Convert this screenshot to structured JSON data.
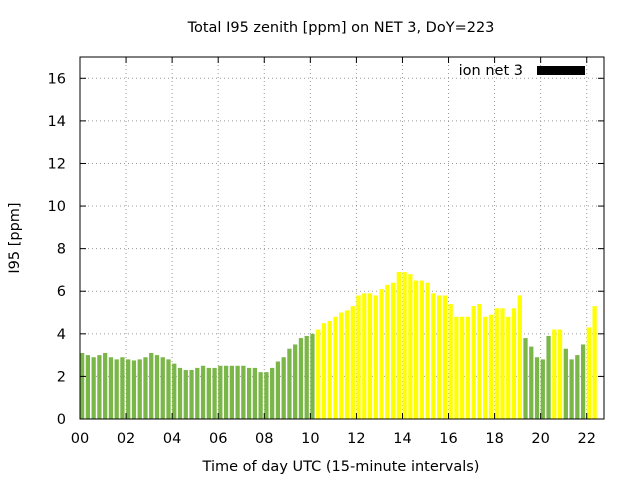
{
  "chart_data": {
    "type": "bar",
    "title": "Total I95 zenith [ppm] on NET 3, DoY=223",
    "xlabel": "Time of day UTC (15-minute intervals)",
    "ylabel": "I95 [ppm]",
    "ylim": [
      0,
      17
    ],
    "xlim": [
      0,
      22.75
    ],
    "yticks": [
      0,
      2,
      4,
      6,
      8,
      10,
      12,
      14,
      16
    ],
    "xticks": [
      {
        "value": 0,
        "label": "00"
      },
      {
        "value": 2,
        "label": "02"
      },
      {
        "value": 4,
        "label": "04"
      },
      {
        "value": 6,
        "label": "06"
      },
      {
        "value": 8,
        "label": "08"
      },
      {
        "value": 10,
        "label": "10"
      },
      {
        "value": 12,
        "label": "12"
      },
      {
        "value": 14,
        "label": "14"
      },
      {
        "value": 16,
        "label": "16"
      },
      {
        "value": 18,
        "label": "18"
      },
      {
        "value": 20,
        "label": "20"
      },
      {
        "value": 22,
        "label": "22"
      }
    ],
    "grid": true,
    "legend_position": "top-right",
    "colors": {
      "green": "#7ab648",
      "yellow": "#ffff00",
      "legend": "#000000"
    },
    "series": [
      {
        "name": "ion net 3",
        "x_step_hours": 0.25,
        "values": [
          3.1,
          3.0,
          2.9,
          3.0,
          3.1,
          2.9,
          2.8,
          2.9,
          2.8,
          2.75,
          2.8,
          2.9,
          3.1,
          3.0,
          2.9,
          2.8,
          2.6,
          2.4,
          2.3,
          2.3,
          2.4,
          2.5,
          2.4,
          2.4,
          2.5,
          2.5,
          2.5,
          2.5,
          2.5,
          2.4,
          2.4,
          2.2,
          2.2,
          2.4,
          2.7,
          2.9,
          3.3,
          3.5,
          3.8,
          3.9,
          4.0,
          4.2,
          4.5,
          4.6,
          4.8,
          5.0,
          5.1,
          5.3,
          5.8,
          5.9,
          5.9,
          5.8,
          6.1,
          6.3,
          6.4,
          6.9,
          6.9,
          6.8,
          6.5,
          6.5,
          6.4,
          5.9,
          5.8,
          5.8,
          5.4,
          4.8,
          4.8,
          4.8,
          5.3,
          5.4,
          4.8,
          4.9,
          5.2,
          5.2,
          4.8,
          5.2,
          5.8,
          3.8,
          3.4,
          2.9,
          2.8,
          3.9,
          4.2,
          4.2,
          3.3,
          2.8,
          3.0,
          3.5,
          4.3,
          5.3
        ],
        "colors": [
          "green",
          "green",
          "green",
          "green",
          "green",
          "green",
          "green",
          "green",
          "green",
          "green",
          "green",
          "green",
          "green",
          "green",
          "green",
          "green",
          "green",
          "green",
          "green",
          "green",
          "green",
          "green",
          "green",
          "green",
          "green",
          "green",
          "green",
          "green",
          "green",
          "green",
          "green",
          "green",
          "green",
          "green",
          "green",
          "green",
          "green",
          "green",
          "green",
          "green",
          "green",
          "yellow",
          "yellow",
          "yellow",
          "yellow",
          "yellow",
          "yellow",
          "yellow",
          "yellow",
          "yellow",
          "yellow",
          "yellow",
          "yellow",
          "yellow",
          "yellow",
          "yellow",
          "yellow",
          "yellow",
          "yellow",
          "yellow",
          "yellow",
          "yellow",
          "yellow",
          "yellow",
          "yellow",
          "yellow",
          "yellow",
          "yellow",
          "yellow",
          "yellow",
          "yellow",
          "yellow",
          "yellow",
          "yellow",
          "yellow",
          "yellow",
          "yellow",
          "green",
          "green",
          "green",
          "green",
          "green",
          "yellow",
          "yellow",
          "green",
          "green",
          "green",
          "green",
          "yellow",
          "yellow"
        ]
      }
    ]
  }
}
